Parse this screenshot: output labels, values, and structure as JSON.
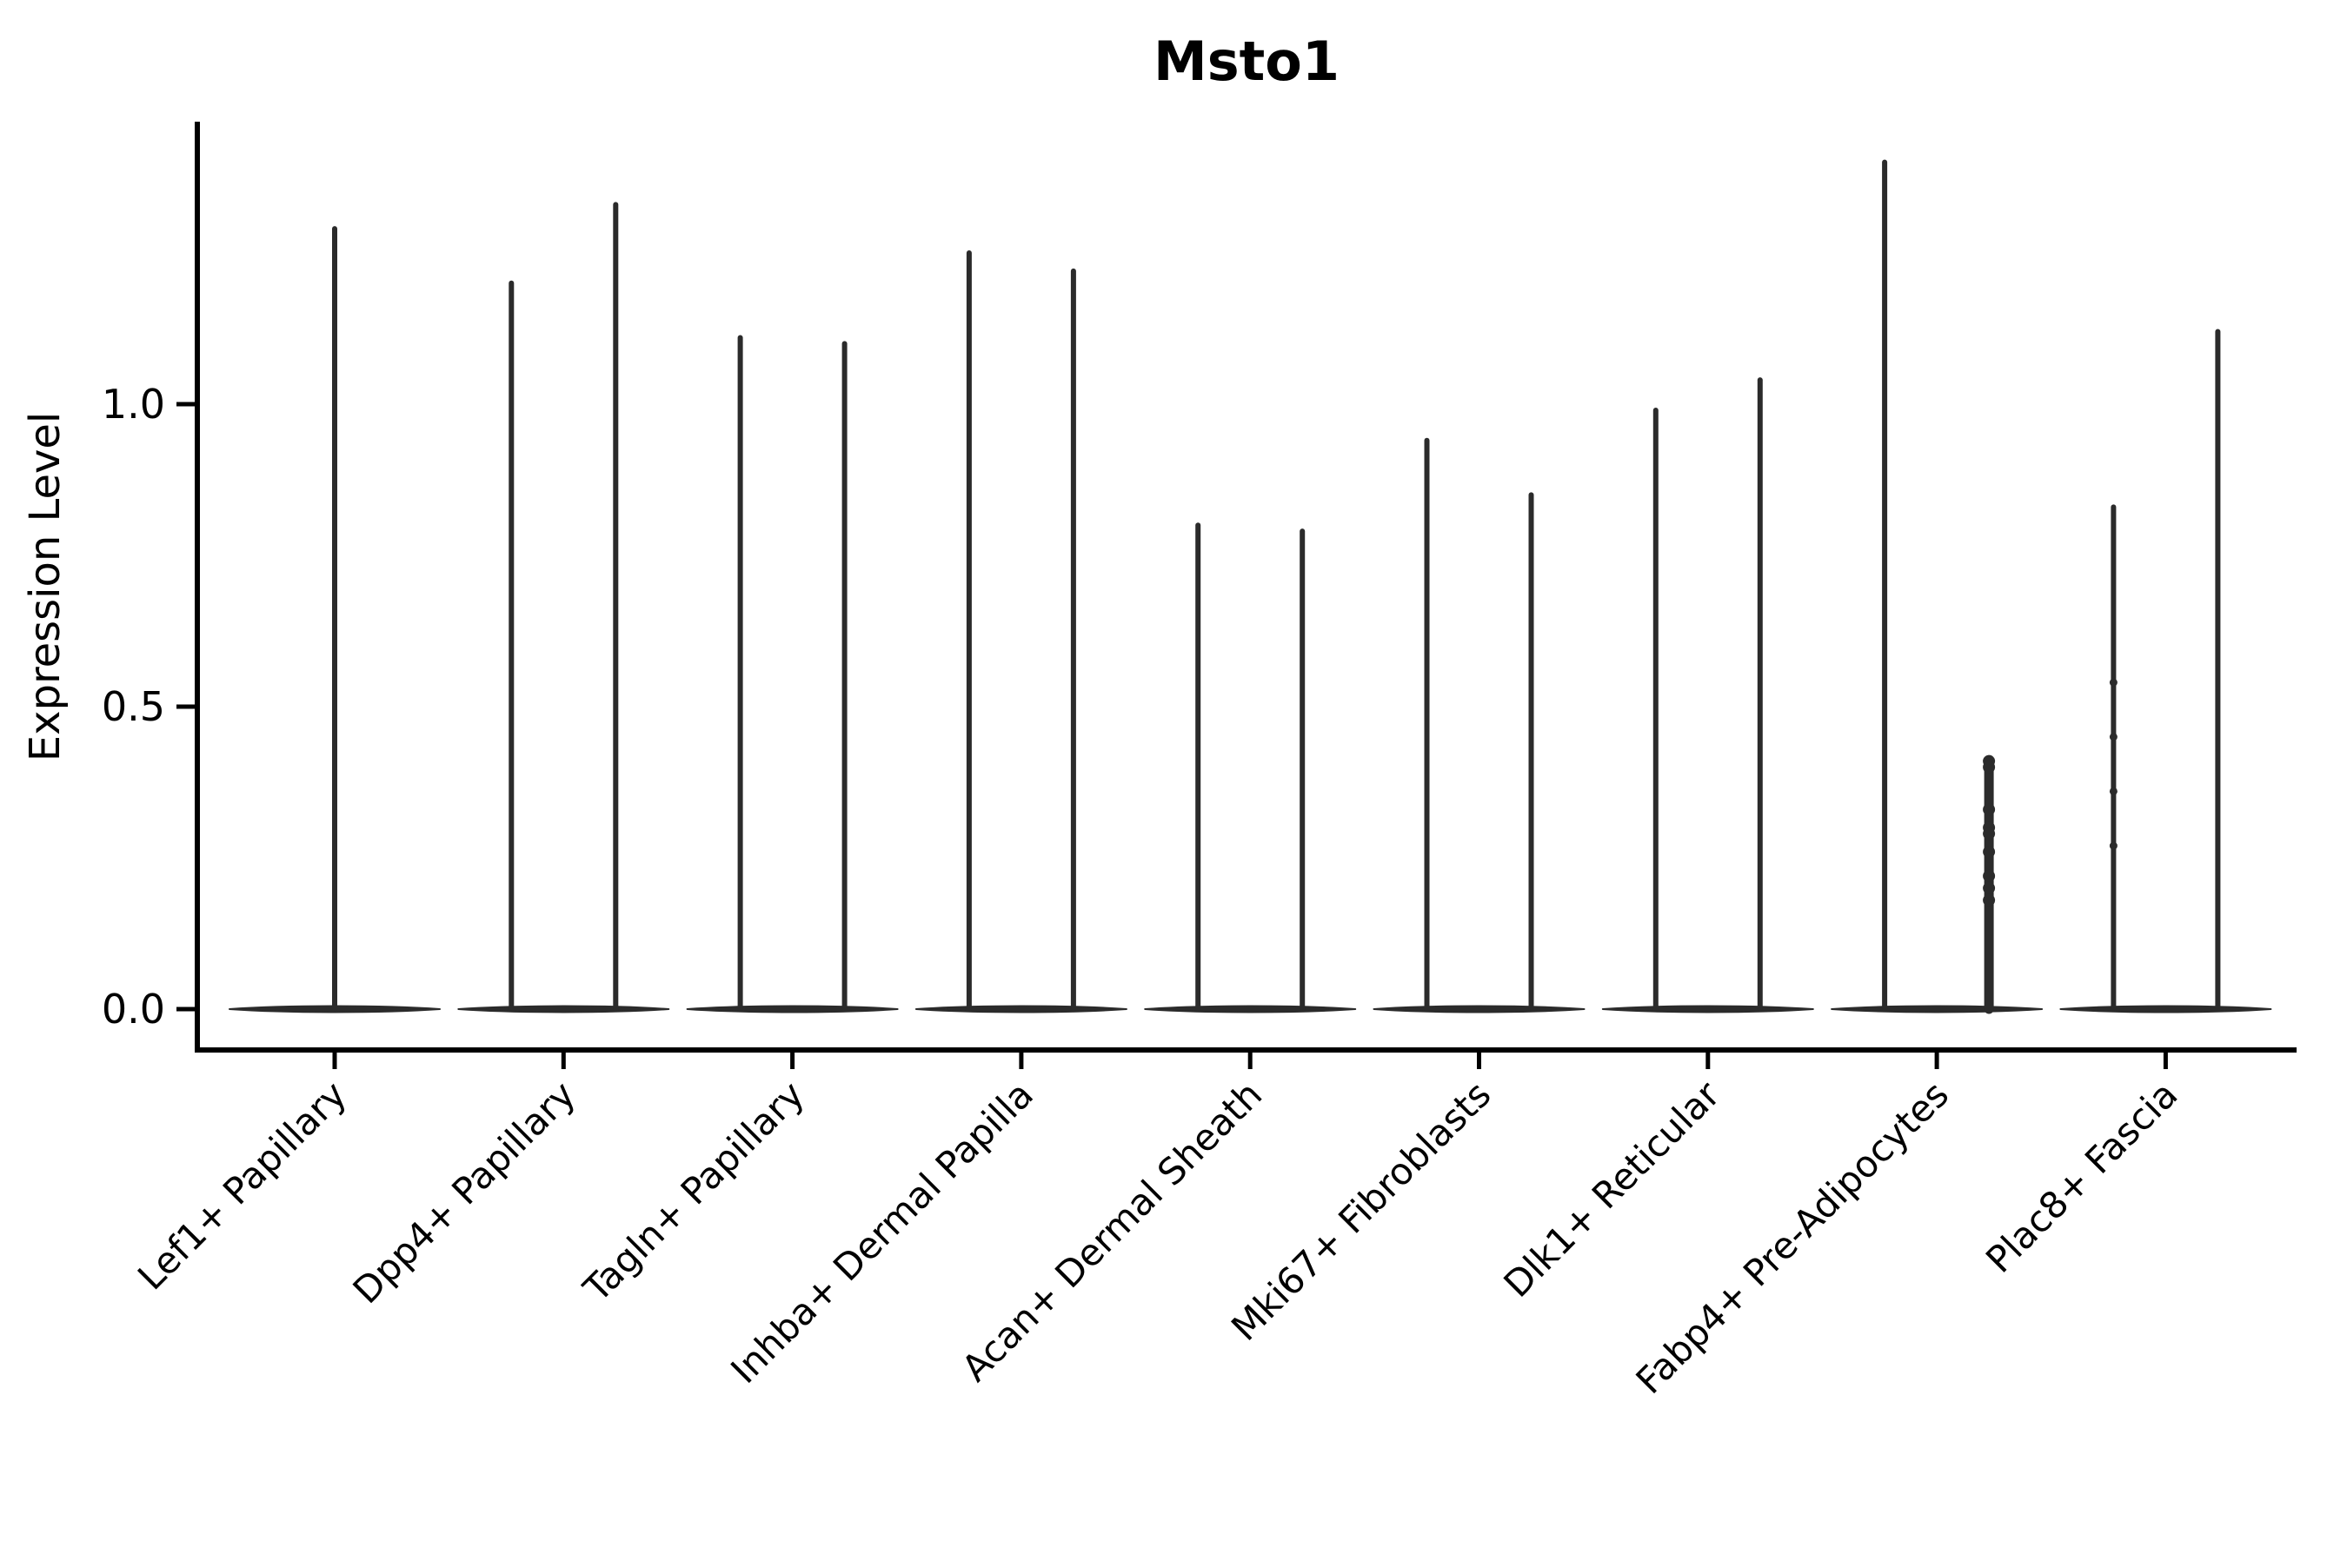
{
  "title": "Msto1",
  "colors": {
    "ink": "#2b2b2b",
    "axis": "#000000",
    "background": "#ffffff"
  },
  "chart_data": {
    "type": "violin",
    "title": "Msto1",
    "xlabel": "",
    "ylabel": "Expression Level",
    "ylim": [
      -0.07,
      1.46
    ],
    "yticks": [
      0,
      0.5,
      1
    ],
    "ytick_labels": [
      "0.0",
      "0.5",
      "1.0"
    ],
    "grid": "off",
    "legend": "none",
    "description": "Violin plot of Msto1 expression; each cell-type category shows a flat density base at 0 with thin high-expression spikes (two dodged violins per category except the first, which has a single centered spike).",
    "categories": [
      {
        "label": "Lef1+ Papillary",
        "violins": [
          {
            "side": "center",
            "max": 1.29
          }
        ]
      },
      {
        "label": "Dpp4+ Papillary",
        "violins": [
          {
            "side": "left",
            "max": 1.2
          },
          {
            "side": "right",
            "max": 1.33
          }
        ]
      },
      {
        "label": "Tagln+ Papillary",
        "violins": [
          {
            "side": "left",
            "max": 1.11
          },
          {
            "side": "right",
            "max": 1.1
          }
        ]
      },
      {
        "label": "Inhba+ Dermal Papilla",
        "violins": [
          {
            "side": "left",
            "max": 1.25
          },
          {
            "side": "right",
            "max": 1.22
          }
        ]
      },
      {
        "label": "Acan+ Dermal Sheath",
        "violins": [
          {
            "side": "left",
            "max": 0.8
          },
          {
            "side": "right",
            "max": 0.79
          }
        ]
      },
      {
        "label": "Mki67+ Fibroblasts",
        "violins": [
          {
            "side": "left",
            "max": 0.94
          },
          {
            "side": "right",
            "max": 0.85
          }
        ]
      },
      {
        "label": "Dlk1+ Reticular",
        "violins": [
          {
            "side": "left",
            "max": 0.99
          },
          {
            "side": "right",
            "max": 1.04
          }
        ]
      },
      {
        "label": "Fabp4+ Pre-Adipocytes",
        "violins": [
          {
            "side": "left",
            "max": 1.4
          },
          {
            "side": "right",
            "max": 0.41,
            "thick": true,
            "dots": [
              0.41,
              0.4,
              0.33,
              0.3,
              0.29,
              0.26,
              0.22,
              0.2,
              0.18
            ]
          }
        ]
      },
      {
        "label": "Plac8+ Fascia",
        "violins": [
          {
            "side": "left",
            "max": 0.83,
            "dots": [
              0.54,
              0.45,
              0.36,
              0.27
            ]
          },
          {
            "side": "right",
            "max": 1.12
          }
        ]
      }
    ]
  }
}
